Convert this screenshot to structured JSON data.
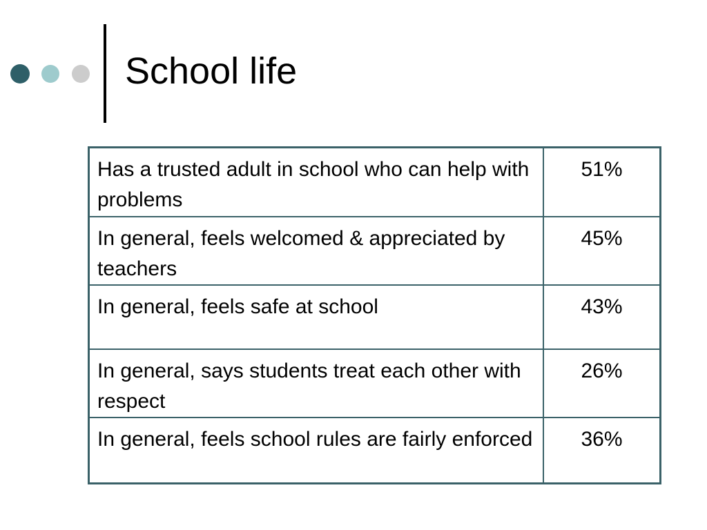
{
  "slide": {
    "title": "School life",
    "colors": {
      "dot_dark": "#2e5f68",
      "dot_light": "#9ecbcd",
      "dot_gray": "#cccccc",
      "table_border": "#3a6168"
    }
  },
  "table": {
    "rows": [
      {
        "label": "Has a trusted adult in school who can help with problems",
        "value": "51%"
      },
      {
        "label": "In general, feels welcomed & appreciated by teachers",
        "value": "45%"
      },
      {
        "label": "In general, feels safe at school",
        "value": "43%"
      },
      {
        "label": "In general, says students treat each other with respect",
        "value": "26%"
      },
      {
        "label": "In general, feels school rules are fairly enforced",
        "value": "36%"
      }
    ]
  }
}
